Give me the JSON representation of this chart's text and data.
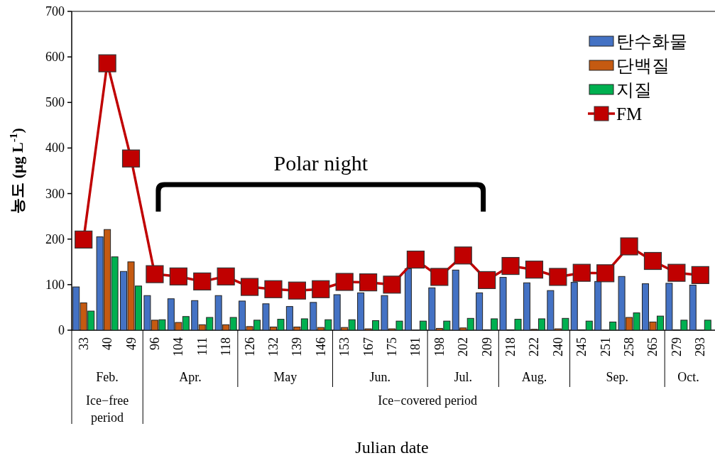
{
  "chart_data": {
    "type": "bar",
    "xlabel": "Julian date",
    "ylabel": "농도 (μg L$^{-1}$)",
    "categories": [
      "33",
      "40",
      "49",
      "96",
      "104",
      "111",
      "118",
      "126",
      "132",
      "139",
      "146",
      "153",
      "167",
      "175",
      "181",
      "198",
      "202",
      "209",
      "218",
      "222",
      "240",
      "245",
      "251",
      "258",
      "265",
      "279",
      "293"
    ],
    "series": [
      {
        "name": "탄수화물",
        "color": "#4472c4",
        "values": [
          95,
          205,
          129,
          76,
          69,
          65,
          76,
          64,
          58,
          52,
          61,
          78,
          82,
          76,
          135,
          93,
          132,
          82,
          116,
          104,
          87,
          105,
          107,
          118,
          102,
          103,
          99
        ]
      },
      {
        "name": "단백질",
        "color": "#c55a11",
        "values": [
          60,
          221,
          150,
          22,
          17,
          12,
          12,
          8,
          7,
          7,
          6,
          6,
          3,
          3,
          0,
          4,
          5,
          1,
          1,
          2,
          3,
          1,
          0,
          28,
          18,
          1,
          0
        ]
      },
      {
        "name": "지질",
        "color": "#00b050",
        "values": [
          42,
          161,
          97,
          23,
          30,
          28,
          28,
          22,
          24,
          25,
          23,
          23,
          21,
          20,
          20,
          20,
          26,
          25,
          24,
          25,
          26,
          20,
          18,
          38,
          31,
          22,
          22
        ]
      },
      {
        "name": "FM",
        "type": "line",
        "color": "#c00000",
        "marker": "square",
        "values": [
          199,
          586,
          377,
          123,
          118,
          107,
          118,
          95,
          90,
          87,
          90,
          106,
          105,
          100,
          155,
          117,
          164,
          110,
          141,
          133,
          117,
          126,
          125,
          184,
          152,
          126,
          121
        ]
      }
    ],
    "ylim": [
      0,
      700
    ],
    "yticks": [
      0,
      100,
      200,
      300,
      400,
      500,
      600,
      700
    ],
    "grid": false,
    "legend": "top right",
    "annotations": [
      "Polar night",
      "Feb.",
      "Apr.",
      "May",
      "Jun.",
      "Jul.",
      "Aug.",
      "Sep.",
      "Oct.",
      "Ice−free period",
      "Ice−covered period"
    ]
  }
}
